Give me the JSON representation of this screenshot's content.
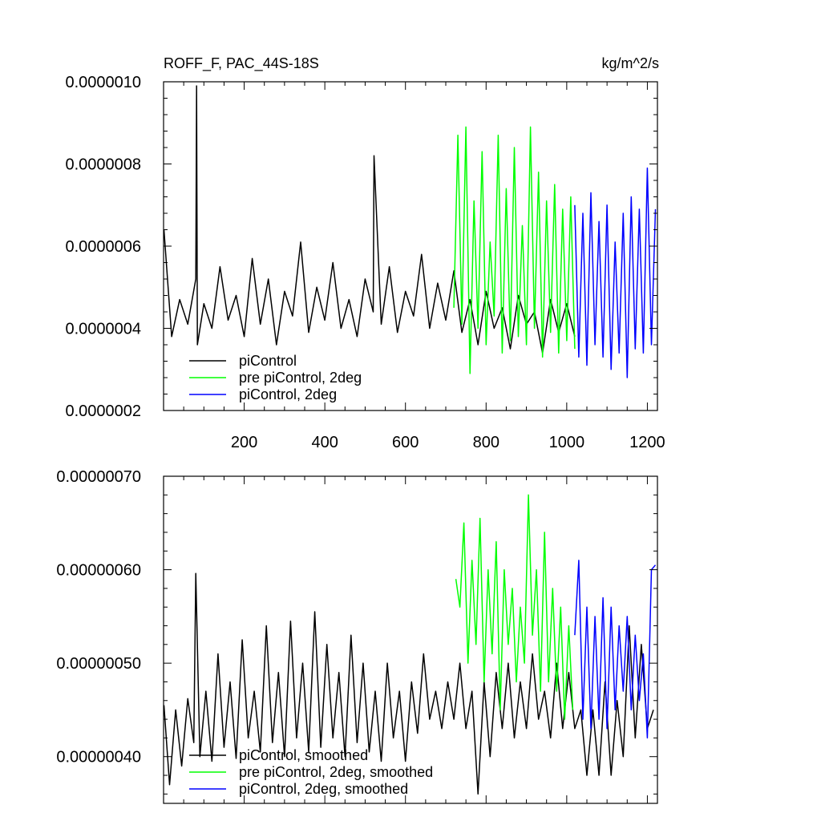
{
  "chart_data": [
    {
      "type": "line",
      "title": "ROFF_F, PAC_44S-18S",
      "units": "kg/m^2/s",
      "xlim": [
        0,
        1225
      ],
      "ylim": [
        2e-07,
        1e-06
      ],
      "xticks": [
        200,
        400,
        600,
        800,
        1000,
        1200
      ],
      "xtick_labels": [
        "200",
        "400",
        "600",
        "800",
        "1000",
        "1200"
      ],
      "yticks": [
        2e-07,
        4e-07,
        6e-07,
        8e-07,
        1e-06
      ],
      "ytick_labels": [
        "0.0000002",
        "0.0000004",
        "0.0000006",
        "0.0000008",
        "0.0000010"
      ],
      "grid": false,
      "legend_position": "lower-left",
      "series": [
        {
          "name": "piControl",
          "color": "#000000",
          "x": [
            1,
            20,
            40,
            60,
            80,
            82,
            84,
            100,
            120,
            140,
            160,
            180,
            200,
            220,
            240,
            260,
            280,
            300,
            320,
            340,
            360,
            380,
            400,
            420,
            440,
            460,
            480,
            500,
            520,
            522,
            540,
            560,
            580,
            600,
            620,
            640,
            660,
            680,
            700,
            720,
            740,
            760,
            780,
            800,
            820,
            840,
            860,
            880,
            900,
            920,
            940,
            960,
            980,
            1000,
            1020
          ],
          "values": [
            6.4e-07,
            3.8e-07,
            4.7e-07,
            4.1e-07,
            5.2e-07,
            9.9e-07,
            3.6e-07,
            4.6e-07,
            4e-07,
            5.5e-07,
            4.2e-07,
            4.8e-07,
            3.8e-07,
            5.7e-07,
            4.1e-07,
            5.2e-07,
            3.6e-07,
            4.9e-07,
            4.3e-07,
            6.1e-07,
            3.9e-07,
            5e-07,
            4.2e-07,
            5.6e-07,
            4e-07,
            4.7e-07,
            3.8e-07,
            5.2e-07,
            4.4e-07,
            8.2e-07,
            4.1e-07,
            5.5e-07,
            3.9e-07,
            4.9e-07,
            4.3e-07,
            5.8e-07,
            4e-07,
            5.1e-07,
            4.2e-07,
            5.4e-07,
            3.9e-07,
            4.7e-07,
            3.6e-07,
            4.9e-07,
            4e-07,
            4.5e-07,
            3.5e-07,
            4.8e-07,
            4.1e-07,
            4.4e-07,
            3.4e-07,
            4.7e-07,
            3.9e-07,
            4.6e-07,
            3.8e-07
          ]
        },
        {
          "name": "pre piControl, 2deg",
          "color": "#00ff00",
          "x": [
            720,
            730,
            740,
            750,
            760,
            770,
            780,
            790,
            800,
            810,
            820,
            830,
            840,
            850,
            860,
            870,
            880,
            890,
            900,
            910,
            920,
            930,
            940,
            950,
            960,
            970,
            980,
            990,
            1000,
            1010,
            1020
          ],
          "values": [
            4.5e-07,
            8.7e-07,
            4.1e-07,
            8.9e-07,
            2.9e-07,
            7.1e-07,
            4e-07,
            8.3e-07,
            3.6e-07,
            6.1e-07,
            4.3e-07,
            8.7e-07,
            3.4e-07,
            7.4e-07,
            3.7e-07,
            8.4e-07,
            3.8e-07,
            6.5e-07,
            3.6e-07,
            8.9e-07,
            4e-07,
            7.8e-07,
            3.3e-07,
            7.1e-07,
            3.9e-07,
            7.5e-07,
            3.4e-07,
            6.9e-07,
            3.7e-07,
            7.2e-07,
            3.5e-07
          ]
        },
        {
          "name": "piControl, 2deg",
          "color": "#0000ff",
          "x": [
            1020,
            1030,
            1040,
            1050,
            1060,
            1070,
            1080,
            1090,
            1100,
            1110,
            1120,
            1130,
            1140,
            1150,
            1160,
            1170,
            1180,
            1190,
            1200,
            1210,
            1220
          ],
          "values": [
            7e-07,
            3.3e-07,
            6.8e-07,
            3.1e-07,
            7.3e-07,
            3.6e-07,
            6.6e-07,
            3.3e-07,
            7e-07,
            3e-07,
            6.1e-07,
            3.4e-07,
            6.8e-07,
            2.8e-07,
            7.2e-07,
            3.5e-07,
            6.9e-07,
            3.4e-07,
            7.9e-07,
            3.6e-07,
            6.9e-07
          ]
        }
      ],
      "legend": [
        {
          "label": "piControl",
          "color": "#000000"
        },
        {
          "label": "pre piControl, 2deg",
          "color": "#00ff00"
        },
        {
          "label": "piControl, 2deg",
          "color": "#0000ff"
        }
      ]
    },
    {
      "type": "line",
      "title": "",
      "xlim": [
        0,
        1225
      ],
      "ylim": [
        3.5e-07,
        7e-07
      ],
      "yticks": [
        4e-07,
        5e-07,
        6e-07,
        7e-07
      ],
      "ytick_labels": [
        "0.00000040",
        "0.00000050",
        "0.00000060",
        "0.00000070"
      ],
      "grid": false,
      "legend_position": "lower-left",
      "series": [
        {
          "name": "piControl, smoothed",
          "color": "#000000",
          "x": [
            1,
            15,
            30,
            45,
            60,
            75,
            80,
            90,
            105,
            120,
            135,
            150,
            165,
            180,
            195,
            210,
            225,
            240,
            255,
            270,
            285,
            300,
            315,
            330,
            345,
            360,
            375,
            390,
            405,
            420,
            435,
            450,
            465,
            480,
            495,
            510,
            525,
            540,
            555,
            570,
            585,
            600,
            615,
            630,
            645,
            660,
            675,
            690,
            705,
            720,
            735,
            750,
            765,
            780,
            795,
            810,
            825,
            840,
            855,
            870,
            885,
            900,
            915,
            930,
            945,
            960,
            975,
            990,
            1005,
            1020,
            1035,
            1050,
            1065,
            1080,
            1095,
            1110,
            1125,
            1140,
            1155,
            1170,
            1185,
            1200,
            1215
          ],
          "values": [
            4.55e-07,
            3.7e-07,
            4.5e-07,
            3.9e-07,
            4.62e-07,
            4.15e-07,
            5.96e-07,
            4e-07,
            4.7e-07,
            3.95e-07,
            5.1e-07,
            4.1e-07,
            4.8e-07,
            3.98e-07,
            5.25e-07,
            4.2e-07,
            4.7e-07,
            4.05e-07,
            5.4e-07,
            4.15e-07,
            4.9e-07,
            4e-07,
            5.45e-07,
            4.2e-07,
            5e-07,
            4.05e-07,
            5.55e-07,
            4.1e-07,
            5.2e-07,
            4.2e-07,
            4.9e-07,
            4e-07,
            5.3e-07,
            4.15e-07,
            5e-07,
            4.05e-07,
            4.7e-07,
            3.95e-07,
            5e-07,
            4.2e-07,
            4.7e-07,
            3.95e-07,
            4.8e-07,
            4.25e-07,
            5.1e-07,
            4.4e-07,
            4.7e-07,
            4.3e-07,
            4.8e-07,
            4.4e-07,
            5e-07,
            4.3e-07,
            4.7e-07,
            3.6e-07,
            4.8e-07,
            4e-07,
            4.9e-07,
            4.3e-07,
            5e-07,
            4.2e-07,
            4.8e-07,
            4.3e-07,
            5.1e-07,
            4.4e-07,
            4.7e-07,
            4.2e-07,
            5e-07,
            4.3e-07,
            4.9e-07,
            4.3e-07,
            4.5e-07,
            3.8e-07,
            4.5e-07,
            3.8e-07,
            4.8e-07,
            3.8e-07,
            4.6e-07,
            4e-07,
            5.4e-07,
            4.2e-07,
            5.2e-07,
            4.3e-07,
            4.5e-07
          ]
        },
        {
          "name": "pre piControl, 2deg, smoothed",
          "color": "#00ff00",
          "x": [
            725,
            735,
            745,
            755,
            765,
            775,
            785,
            795,
            805,
            815,
            825,
            835,
            845,
            855,
            865,
            875,
            885,
            895,
            905,
            915,
            925,
            935,
            945,
            955,
            965,
            975,
            985,
            995,
            1005,
            1015
          ],
          "values": [
            5.9e-07,
            5.6e-07,
            6.5e-07,
            5e-07,
            6.1e-07,
            5.2e-07,
            6.55e-07,
            4.8e-07,
            6e-07,
            5.1e-07,
            6.3e-07,
            4.5e-07,
            6e-07,
            5.2e-07,
            5.8e-07,
            4.8e-07,
            5.6e-07,
            5e-07,
            6.8e-07,
            5.3e-07,
            6e-07,
            4.7e-07,
            6.4e-07,
            4.8e-07,
            5.8e-07,
            4.7e-07,
            5.6e-07,
            4.4e-07,
            5.4e-07,
            4.5e-07
          ]
        },
        {
          "name": "piControl, 2deg, smoothed",
          "color": "#0000ff",
          "x": [
            1020,
            1030,
            1040,
            1050,
            1060,
            1070,
            1080,
            1090,
            1100,
            1110,
            1120,
            1130,
            1140,
            1150,
            1160,
            1170,
            1180,
            1190,
            1200,
            1210,
            1220
          ],
          "values": [
            5.3e-07,
            6.1e-07,
            4.4e-07,
            5.6e-07,
            4.3e-07,
            5.5e-07,
            4.4e-07,
            5.7e-07,
            4.3e-07,
            5.6e-07,
            4.5e-07,
            5.4e-07,
            4.7e-07,
            5.5e-07,
            4.5e-07,
            5.3e-07,
            4.6e-07,
            5.1e-07,
            4.2e-07,
            6e-07,
            6.05e-07
          ]
        }
      ],
      "legend": [
        {
          "label": "piControl, smoothed",
          "color": "#000000"
        },
        {
          "label": "pre piControl, 2deg, smoothed",
          "color": "#00ff00"
        },
        {
          "label": "piControl, 2deg, smoothed",
          "color": "#0000ff"
        }
      ]
    }
  ]
}
